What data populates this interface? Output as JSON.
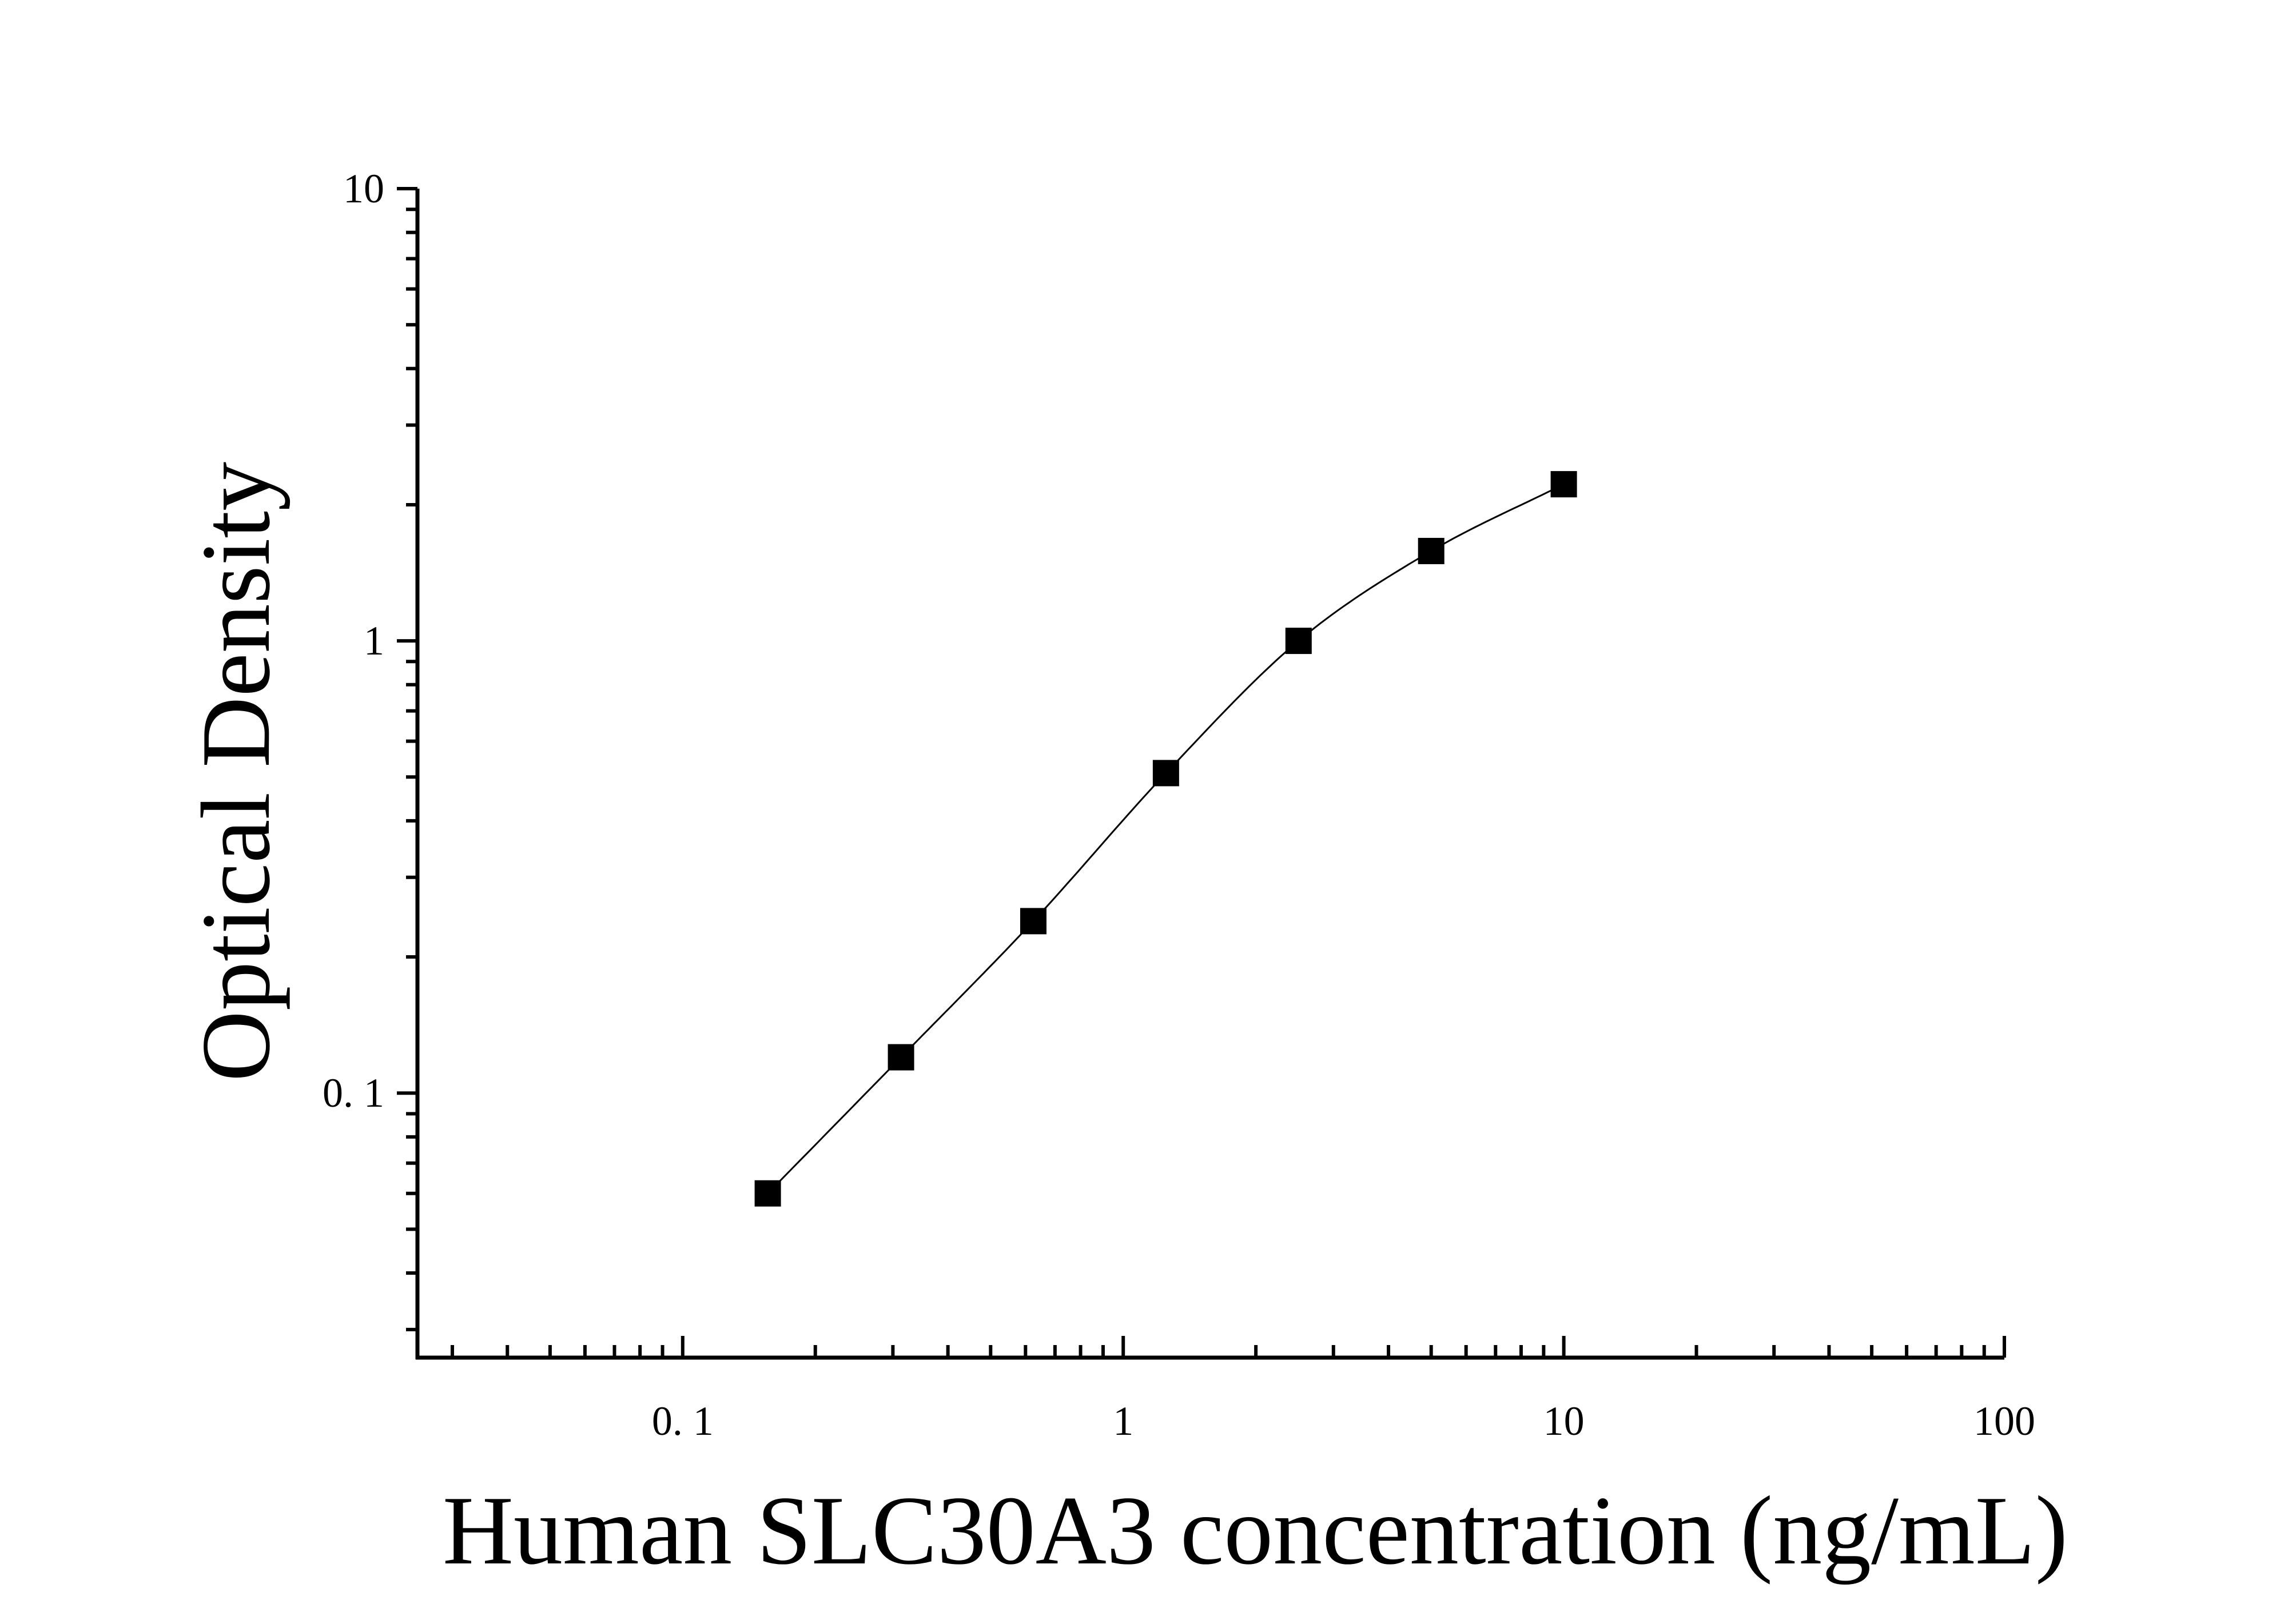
{
  "chart_data": {
    "type": "scatter",
    "title": "",
    "xlabel": "Human SLC30A3 concentration (ng/mL)",
    "ylabel": "Optical Density",
    "xscale": "log",
    "yscale": "log",
    "xlim": [
      0.025,
      100
    ],
    "ylim": [
      0.026,
      10
    ],
    "x_ticks": [
      {
        "value": 0.1,
        "label": "0. 1"
      },
      {
        "value": 1,
        "label": "1"
      },
      {
        "value": 10,
        "label": "10"
      },
      {
        "value": 100,
        "label": "100"
      }
    ],
    "y_ticks": [
      {
        "value": 0.1,
        "label": "0. 1"
      },
      {
        "value": 1,
        "label": "1"
      },
      {
        "value": 10,
        "label": "10"
      }
    ],
    "grid": false,
    "marker": "square",
    "color": "#000000",
    "series": [
      {
        "points": [
          {
            "x": 0.156,
            "y": 0.06
          },
          {
            "x": 0.313,
            "y": 0.12
          },
          {
            "x": 0.625,
            "y": 0.24
          },
          {
            "x": 1.25,
            "y": 0.51
          },
          {
            "x": 2.5,
            "y": 1.0
          },
          {
            "x": 5,
            "y": 1.58
          },
          {
            "x": 10,
            "y": 2.22
          }
        ],
        "fit_curve": true
      }
    ]
  }
}
